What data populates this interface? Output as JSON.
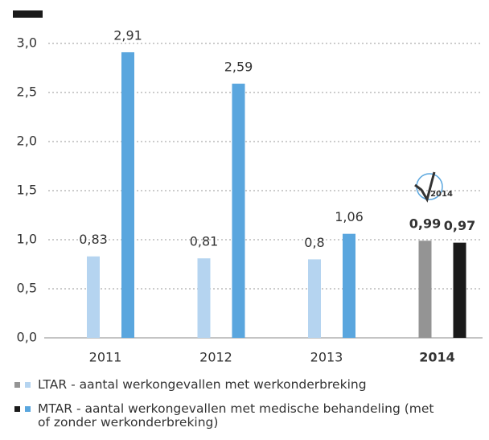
{
  "chart_data": {
    "type": "bar",
    "categories": [
      "2011",
      "2012",
      "2013",
      "2014"
    ],
    "series": [
      {
        "name": "LTAR - aantal werkongevallen met werkonderbreking",
        "colors": [
          "#b5d4f0",
          "#b5d4f0",
          "#b5d4f0",
          "#949494"
        ],
        "values": [
          0.83,
          0.81,
          0.8,
          0.99
        ],
        "value_labels": [
          "0,83",
          "0,81",
          "0,8",
          "0,99"
        ]
      },
      {
        "name": "MTAR - aantal werkongevallen met medische behandeling (met of zonder werkonderbreking)",
        "colors": [
          "#5aa6de",
          "#5aa6de",
          "#5aa6de",
          "#1a1a1a"
        ],
        "values": [
          2.91,
          2.59,
          1.06,
          0.97
        ],
        "value_labels": [
          "2,91",
          "2,59",
          "1,06",
          "0,97"
        ]
      }
    ],
    "ylim": [
      0,
      3
    ],
    "yticks": [
      {
        "value": 0,
        "label": "0,0"
      },
      {
        "value": 0.5,
        "label": "0,5"
      },
      {
        "value": 1,
        "label": "1,0"
      },
      {
        "value": 1.5,
        "label": "1,5"
      },
      {
        "value": 2,
        "label": "2,0"
      },
      {
        "value": 2.5,
        "label": "2,5"
      },
      {
        "value": 3,
        "label": "3,0"
      }
    ],
    "grid": true,
    "badge": "2014"
  }
}
